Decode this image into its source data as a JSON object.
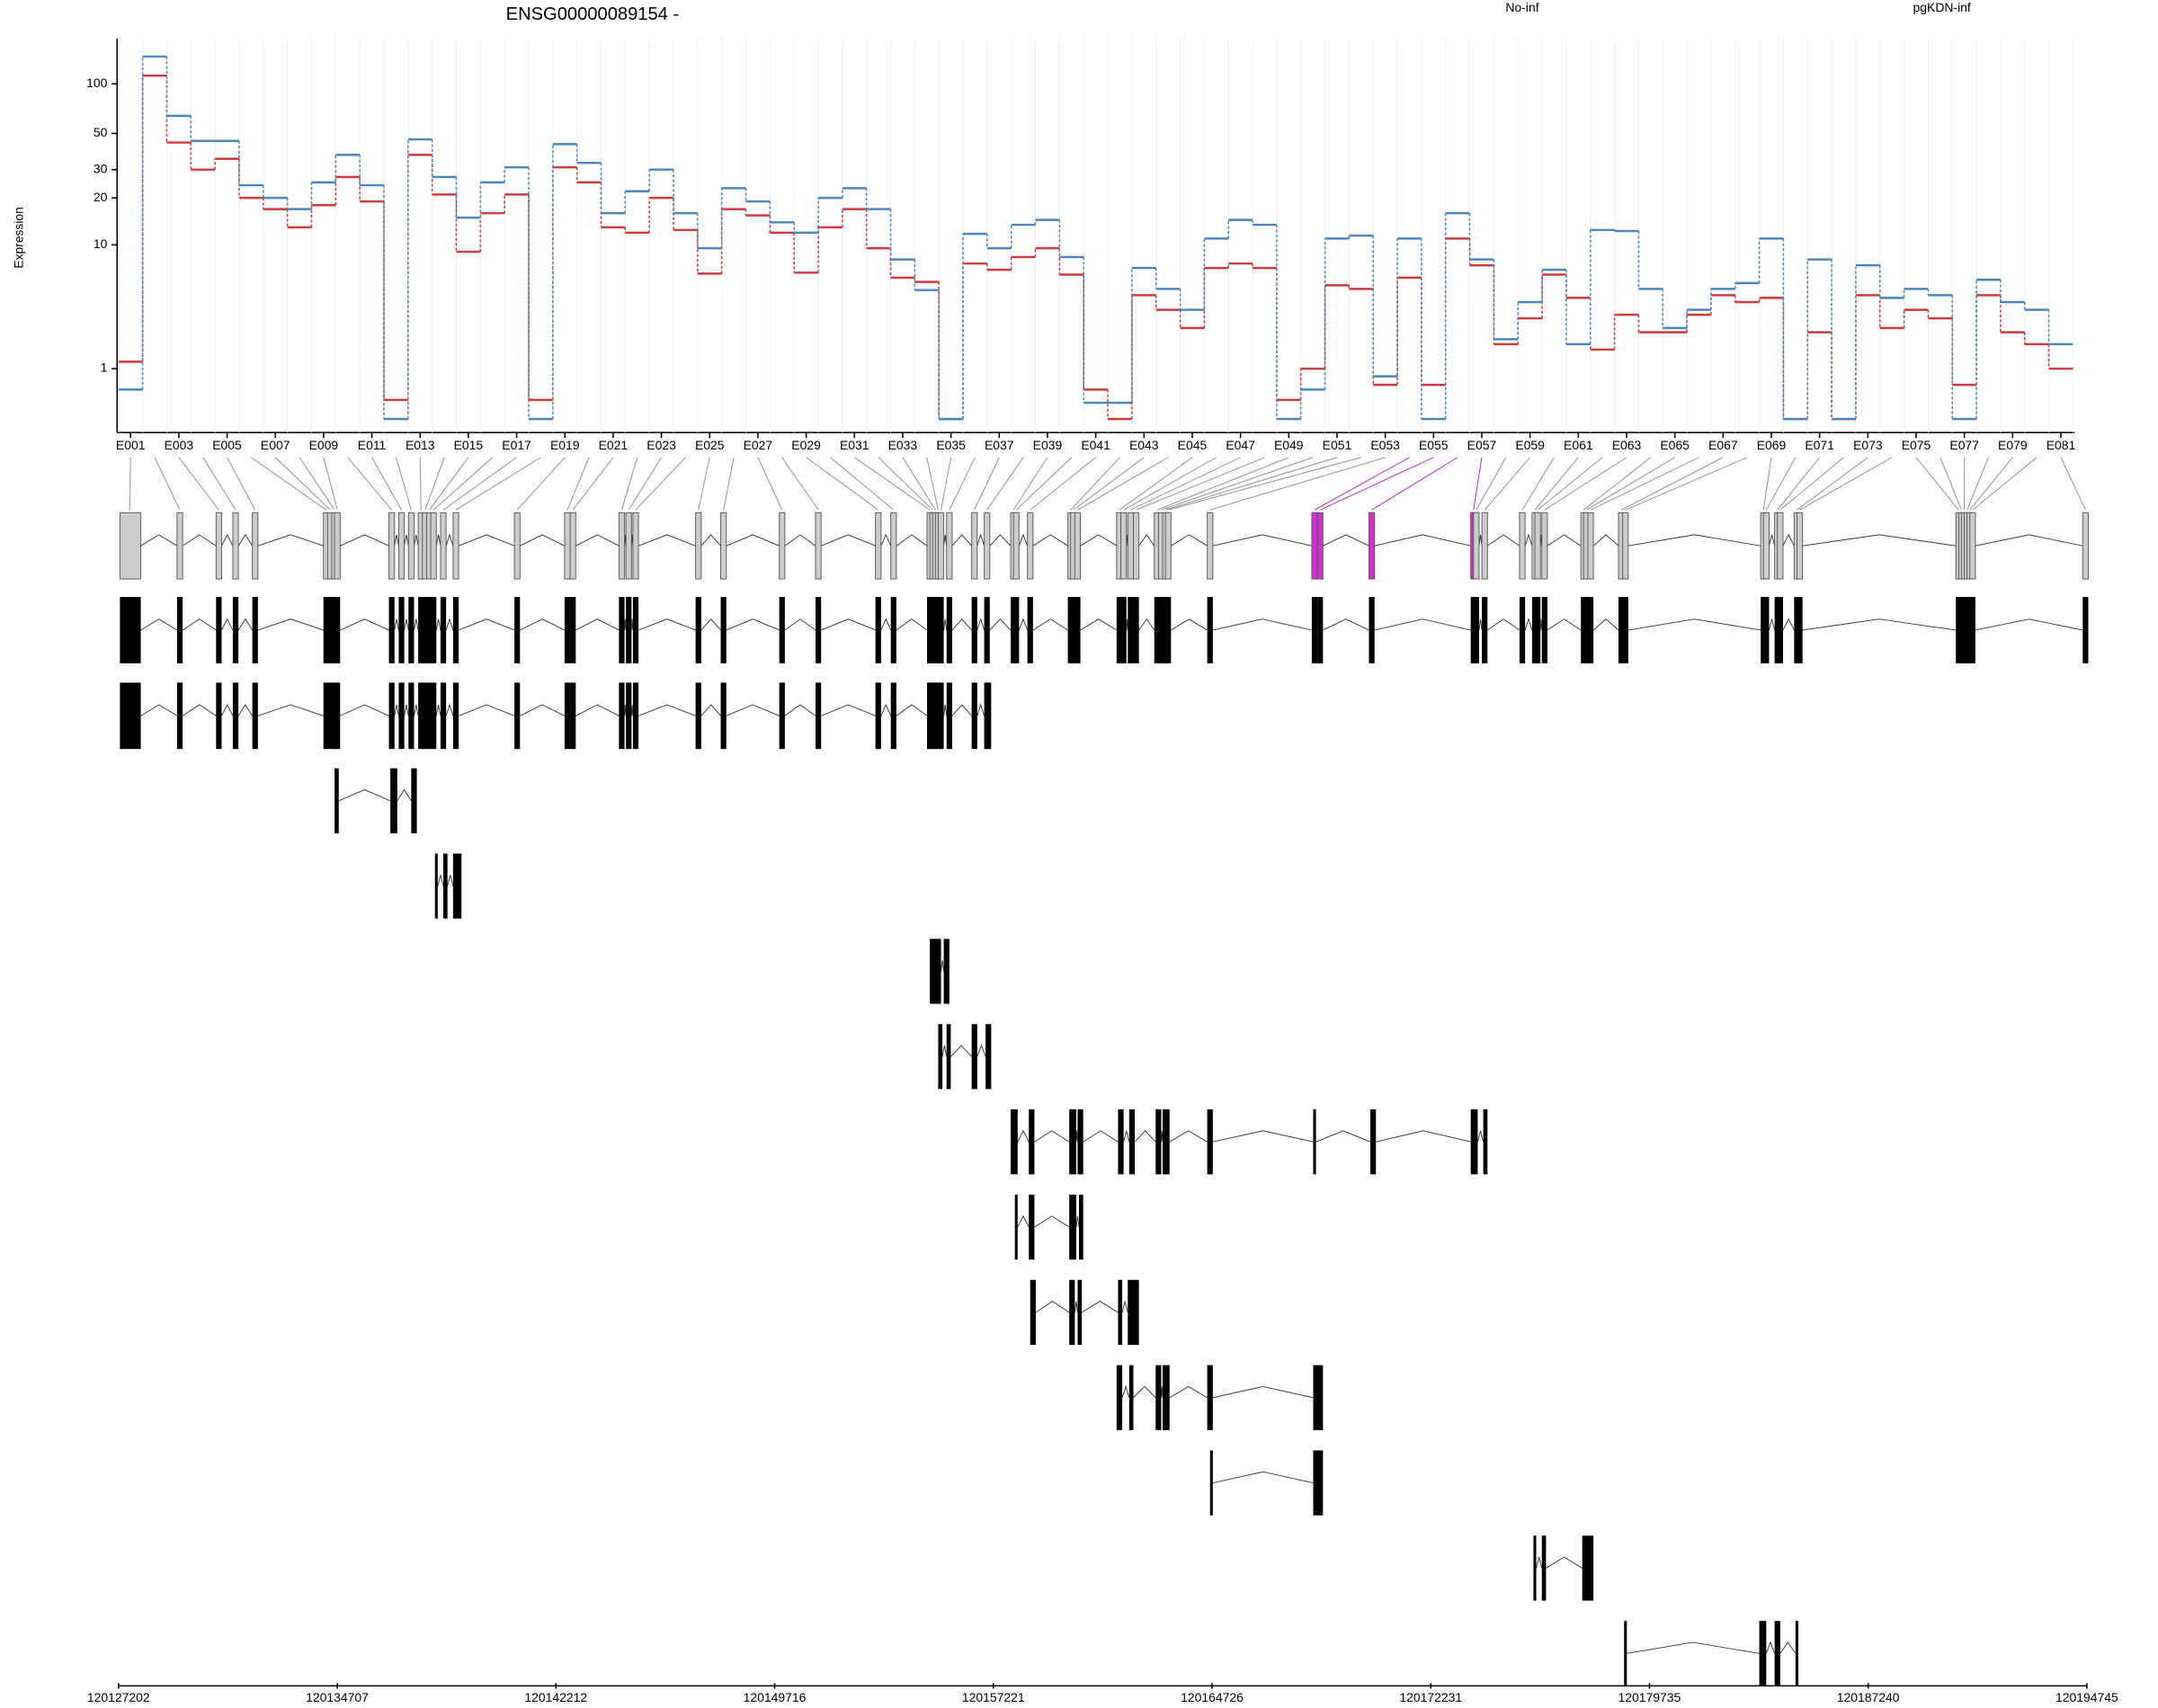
{
  "chart_data": {
    "type": "step",
    "title": "ENSG00000089154 -",
    "y_label": "Expression",
    "yscale": "log1p",
    "ylim": [
      -0.17,
      180
    ],
    "yticks": [
      1,
      10,
      20,
      30,
      50,
      100
    ],
    "grid": true,
    "categories": [
      "E001",
      null,
      "E003",
      null,
      "E005",
      null,
      "E007",
      null,
      "E009",
      null,
      "E011",
      null,
      "E013",
      null,
      "E015",
      null,
      "E017",
      null,
      "E019",
      null,
      "E021",
      null,
      "E023",
      null,
      "E025",
      null,
      "E027",
      null,
      "E029",
      null,
      "E031",
      null,
      "E033",
      null,
      "E035",
      null,
      "E037",
      null,
      "E039",
      null,
      "E041",
      null,
      "E043",
      null,
      "E045",
      null,
      "E047",
      null,
      "E049",
      null,
      "E051",
      null,
      "E053",
      null,
      "E055",
      null,
      "E057",
      null,
      "E059",
      null,
      "E061",
      null,
      "E063",
      null,
      "E065",
      null,
      "E067",
      null,
      "E069",
      null,
      "E071",
      null,
      "E073",
      null,
      "E075",
      null,
      "E077",
      null,
      "E079",
      null,
      "E081"
    ],
    "series": [
      {
        "name": "No-inf",
        "color": "#d03a3a",
        "values": [
          1.2,
          112,
          44,
          30,
          35,
          20,
          17,
          13,
          18,
          27,
          19,
          0.3,
          37,
          21,
          9,
          16,
          21,
          0.3,
          31,
          25,
          13,
          12,
          20,
          12.5,
          6.4,
          17,
          15.5,
          12,
          6.5,
          13,
          17,
          9.5,
          6,
          5.6,
          0,
          7.5,
          6.8,
          8.3,
          9.5,
          6.3,
          0.5,
          0,
          4.5,
          3.5,
          2.5,
          7,
          7.5,
          7,
          0.3,
          1,
          5.3,
          5,
          0.6,
          6,
          0.6,
          11,
          7.3,
          1.8,
          3,
          6.3,
          4.3,
          1.6,
          3.2,
          2.3,
          2.3,
          3.2,
          4.5,
          4,
          4.3,
          0,
          2.3,
          0,
          4.5,
          2.5,
          3.5,
          3,
          0.6,
          4.5,
          2.3,
          1.8,
          1
        ]
      },
      {
        "name": "pgKDN-inf",
        "color": "#4a86c0",
        "values": [
          0.5,
          146,
          64,
          45,
          45,
          24,
          20,
          17,
          25,
          37,
          24,
          0,
          46,
          27,
          15,
          25,
          31,
          0,
          43,
          33,
          16,
          22,
          30,
          16,
          9.5,
          23,
          19,
          14,
          12,
          20,
          23,
          17,
          8,
          4.9,
          0,
          11.8,
          9.5,
          13.5,
          14.5,
          8.3,
          0.25,
          0.25,
          7,
          5,
          3.5,
          11,
          14.5,
          13.5,
          0,
          0.5,
          11,
          11.5,
          0.8,
          11,
          0,
          16,
          8,
          2,
          4,
          6.8,
          1.8,
          12.5,
          12.3,
          5,
          2.5,
          3.5,
          5,
          5.5,
          11,
          0,
          8,
          0,
          7.3,
          4.3,
          5,
          4.5,
          0,
          5.8,
          4,
          3.5,
          1.8
        ]
      }
    ],
    "genome_axis": {
      "xlim": [
        120127202,
        120194745
      ],
      "xticks": [
        120127202,
        120134707,
        120142212,
        120149716,
        120157221,
        120164726,
        120172231,
        120179735,
        120187240,
        120194745
      ]
    }
  }
}
